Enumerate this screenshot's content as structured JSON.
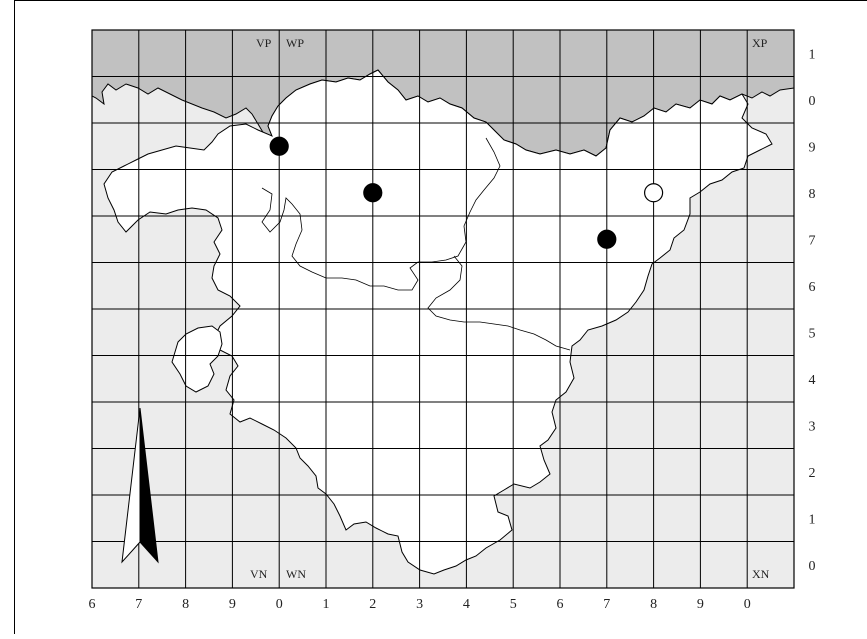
{
  "map": {
    "x_labels": [
      "6",
      "7",
      "8",
      "9",
      "0",
      "1",
      "2",
      "3",
      "4",
      "5",
      "6",
      "7",
      "8",
      "9",
      "0"
    ],
    "y_labels": [
      "1",
      "0",
      "9",
      "8",
      "7",
      "6",
      "5",
      "4",
      "3",
      "2",
      "1",
      "0"
    ],
    "zones": {
      "top_left_a": "VP",
      "top_left_b": "WP",
      "top_right": "XP",
      "bottom_left_a": "VN",
      "bottom_left_b": "WN",
      "bottom_right": "XN"
    },
    "records": [
      {
        "grid_x": "0",
        "grid_y": "9",
        "type": "filled"
      },
      {
        "grid_x": "2",
        "grid_y": "8",
        "type": "filled"
      },
      {
        "grid_x": "8",
        "grid_y": "8",
        "type": "open"
      },
      {
        "grid_x": "7",
        "grid_y": "7",
        "type": "filled"
      }
    ],
    "colors": {
      "sea": "#c1c1c1",
      "outside_land": "#ececec",
      "region": "#ffffff",
      "grid": "#000000"
    },
    "north_arrow_icon": "north-arrow-icon"
  }
}
